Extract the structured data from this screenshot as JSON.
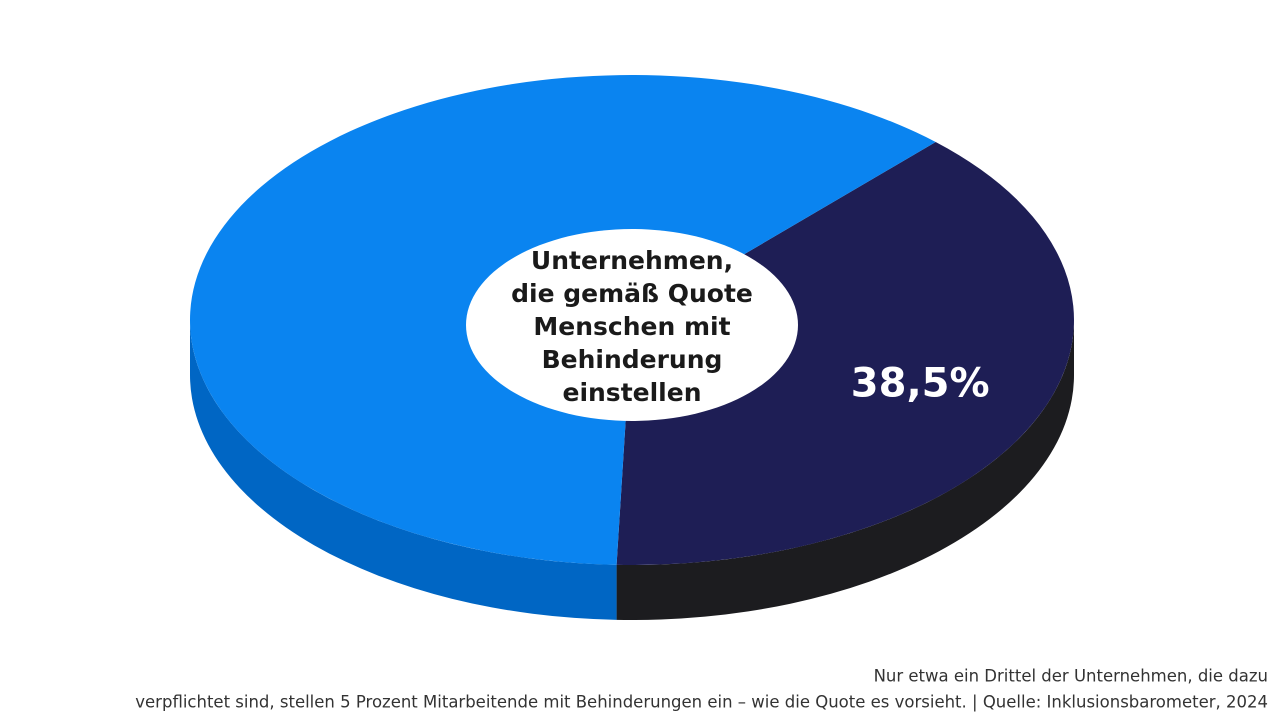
{
  "chart_data": {
    "type": "pie",
    "center_label": [
      "Unternehmen,",
      "die gemäß Quote",
      "Menschen mit",
      "Behinderung",
      "einstellen"
    ],
    "values": [
      38.5,
      61.5
    ],
    "value_labels": [
      "38,5%",
      null
    ],
    "colors": [
      "#1e1e55",
      "#0a84f0"
    ],
    "side_colors": [
      "#1c1c1f",
      "#0066c4"
    ],
    "caption": [
      "Nur etwa ein Drittel der Unternehmen, die dazu",
      "verpflichtet sind, stellen 5 Prozent Mitarbeitende mit Behinderungen ein – wie die Quote es vorsieht. | Quelle: Inklusionsbarometer, 2024"
    ]
  }
}
